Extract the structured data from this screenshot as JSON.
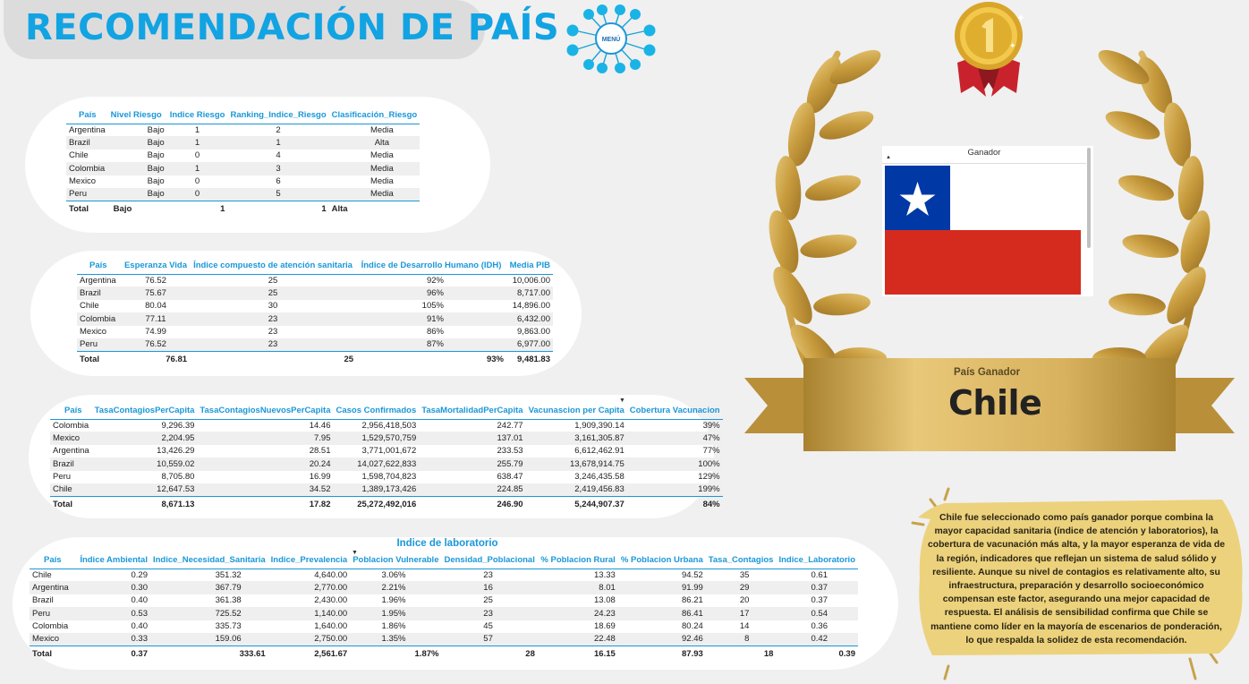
{
  "header": {
    "title": "RECOMENDACIÓN DE PAÍS",
    "menu_label": "MENÚ"
  },
  "risk_table": {
    "columns": [
      "País",
      "Nivel Riesgo",
      "Indice Riesgo",
      "Ranking_Indice_Riesgo",
      "Clasificación_Riesgo"
    ],
    "rows": [
      [
        "Argentina",
        "Bajo",
        "1",
        "2",
        "Media"
      ],
      [
        "Brazil",
        "Bajo",
        "1",
        "1",
        "Alta"
      ],
      [
        "Chile",
        "Bajo",
        "0",
        "4",
        "Media"
      ],
      [
        "Colombia",
        "Bajo",
        "1",
        "3",
        "Media"
      ],
      [
        "Mexico",
        "Bajo",
        "0",
        "6",
        "Media"
      ],
      [
        "Peru",
        "Bajo",
        "0",
        "5",
        "Media"
      ]
    ],
    "total": [
      "Total",
      "Bajo",
      "1",
      "1",
      "Alta"
    ]
  },
  "health_table": {
    "columns": [
      "País",
      "Esperanza Vida",
      "Índice compuesto de atención sanitaria",
      "Índice de Desarrollo Humano (IDH)",
      "Media PIB"
    ],
    "rows": [
      [
        "Argentina",
        "76.52",
        "25",
        "92%",
        "10,006.00"
      ],
      [
        "Brazil",
        "75.67",
        "25",
        "96%",
        "8,717.00"
      ],
      [
        "Chile",
        "80.04",
        "30",
        "105%",
        "14,896.00"
      ],
      [
        "Colombia",
        "77.11",
        "23",
        "91%",
        "6,432.00"
      ],
      [
        "Mexico",
        "74.99",
        "23",
        "86%",
        "9,863.00"
      ],
      [
        "Peru",
        "76.52",
        "23",
        "87%",
        "6,977.00"
      ]
    ],
    "total": [
      "Total",
      "76.81",
      "25",
      "93%",
      "9,481.83"
    ]
  },
  "covid_table": {
    "columns": [
      "País",
      "TasaContagiosPerCapita",
      "TasaContagiosNuevosPerCapita",
      "Casos Confirmados",
      "TasaMortalidadPerCapita",
      "Vacunascion per Capita",
      "Cobertura Vacunacion"
    ],
    "rows": [
      [
        "Colombia",
        "9,296.39",
        "14.46",
        "2,956,418,503",
        "242.77",
        "1,909,390.14",
        "39%"
      ],
      [
        "Mexico",
        "2,204.95",
        "7.95",
        "1,529,570,759",
        "137.01",
        "3,161,305.87",
        "47%"
      ],
      [
        "Argentina",
        "13,426.29",
        "28.51",
        "3,771,001,672",
        "233.53",
        "6,612,462.91",
        "77%"
      ],
      [
        "Brazil",
        "10,559.02",
        "20.24",
        "14,027,622,833",
        "255.79",
        "13,678,914.75",
        "100%"
      ],
      [
        "Peru",
        "8,705.80",
        "16.99",
        "1,598,704,823",
        "638.47",
        "3,246,435.58",
        "129%"
      ],
      [
        "Chile",
        "12,647.53",
        "34.52",
        "1,389,173,426",
        "224.85",
        "2,419,456.83",
        "199%"
      ]
    ],
    "total": [
      "Total",
      "8,671.13",
      "17.82",
      "25,272,492,016",
      "246.90",
      "5,244,907.37",
      "84%"
    ]
  },
  "lab_table": {
    "title": "Indice de laboratorio",
    "columns": [
      "País",
      "Índice Ambiental",
      "Indice_Necesidad_Sanitaria",
      "Indice_Prevalencia",
      "Poblacion Vulnerable",
      "Densidad_Poblacional",
      "% Poblacion Rural",
      "% Poblacion Urbana",
      "Tasa_Contagios",
      "Indice_Laboratorio"
    ],
    "rows": [
      [
        "Chile",
        "0.29",
        "351.32",
        "4,640.00",
        "3.06%",
        "23",
        "13.33",
        "94.52",
        "35",
        "0.61"
      ],
      [
        "Argentina",
        "0.30",
        "367.79",
        "2,770.00",
        "2.21%",
        "16",
        "8.01",
        "91.99",
        "29",
        "0.37"
      ],
      [
        "Brazil",
        "0.40",
        "361.38",
        "2,430.00",
        "1.96%",
        "25",
        "13.08",
        "86.21",
        "20",
        "0.37"
      ],
      [
        "Peru",
        "0.53",
        "725.52",
        "1,140.00",
        "1.95%",
        "23",
        "24.23",
        "86.41",
        "17",
        "0.54"
      ],
      [
        "Colombia",
        "0.40",
        "335.73",
        "1,640.00",
        "1.86%",
        "45",
        "18.69",
        "80.24",
        "14",
        "0.36"
      ],
      [
        "Mexico",
        "0.33",
        "159.06",
        "2,750.00",
        "1.35%",
        "57",
        "22.48",
        "92.46",
        "8",
        "0.42"
      ]
    ],
    "total": [
      "Total",
      "0.37",
      "333.61",
      "2,561.67",
      "1.87%",
      "28",
      "16.15",
      "87.93",
      "18",
      "0.39"
    ]
  },
  "slicer": {
    "header": "Ganador",
    "flag_icon": "chile-flag-icon"
  },
  "winner": {
    "label": "País Ganador",
    "name": "Chile"
  },
  "note": {
    "text": "Chile fue seleccionado como país ganador porque combina la mayor capacidad sanitaria (índice de atención y laboratorios), la cobertura de vacunación más alta, y la mayor esperanza de vida de la región, indicadores que reflejan un sistema de salud sólido y resiliente. Aunque su nivel de contagios es relativamente alto, su infraestructura, preparación y desarrollo socioeconómico compensan este factor, asegurando una mejor capacidad de respuesta. El análisis de sensibilidad confirma que Chile se mantiene como líder en la mayoría de escenarios de ponderación, lo que respalda la solidez de esta recomendación."
  },
  "colors": {
    "accent_blue": "#1a97d8",
    "title_blue": "#12a3e3",
    "gold": "#c9a24a",
    "note_bg": "#ecd27c",
    "flag_blue": "#0039a6",
    "flag_red": "#d52b1e"
  }
}
